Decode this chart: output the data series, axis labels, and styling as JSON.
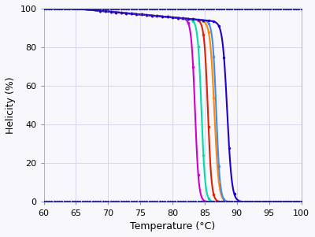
{
  "xlabel": "Temperature (°C)",
  "ylabel": "Helicity (%)",
  "xlim": [
    60,
    100
  ],
  "ylim": [
    0,
    100
  ],
  "xticks": [
    60,
    65,
    70,
    75,
    80,
    85,
    90,
    95,
    100
  ],
  "yticks": [
    0,
    20,
    40,
    60,
    80,
    100
  ],
  "background_color": "#f8f8fc",
  "grid_color": "#d8d8e8",
  "curves": [
    {
      "color": "#cc00cc",
      "tm": 83.5,
      "k": 3.5
    },
    {
      "color": "#00ddaa",
      "tm": 84.5,
      "k": 3.5
    },
    {
      "color": "#dd2200",
      "tm": 85.5,
      "k": 3.5
    },
    {
      "color": "#ff8800",
      "tm": 86.5,
      "k": 3.0
    },
    {
      "color": "#4488ee",
      "tm": 86.8,
      "k": 3.5
    },
    {
      "color": "#2200cc",
      "tm": 88.5,
      "k": 2.8
    }
  ],
  "dot_color": "#2222aa",
  "dot_size": 2.5,
  "linewidth": 1.5
}
